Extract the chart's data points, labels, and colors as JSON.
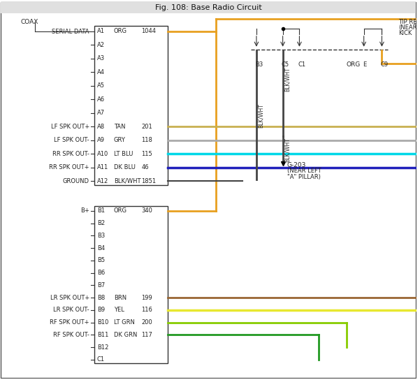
{
  "title": "Fig. 108: Base Radio Circuit",
  "bg_color": "#ffffff",
  "wire_colors": {
    "orange": "#e8a020",
    "tan": "#c8b050",
    "gray": "#aaaaaa",
    "lt_blue": "#00d8e8",
    "dk_blue": "#2020bb",
    "blk_wht": "#444444",
    "lt_green": "#88cc00",
    "dk_green": "#229922",
    "yellow": "#e8e830",
    "brown": "#996633"
  },
  "pin_labels_A": [
    [
      "A1",
      "ORG",
      "1044"
    ],
    [
      "A2",
      "",
      ""
    ],
    [
      "A3",
      "",
      ""
    ],
    [
      "A4",
      "",
      ""
    ],
    [
      "A5",
      "",
      ""
    ],
    [
      "A6",
      "",
      ""
    ],
    [
      "A7",
      "",
      ""
    ],
    [
      "A8",
      "TAN",
      "201"
    ],
    [
      "A9",
      "GRY",
      "118"
    ],
    [
      "A10",
      "LT BLU",
      "115"
    ],
    [
      "A11",
      "DK BLU",
      "46"
    ],
    [
      "A12",
      "BLK/WHT",
      "1851"
    ]
  ],
  "pin_labels_B": [
    [
      "B1",
      "ORG",
      "340"
    ],
    [
      "B2",
      "",
      ""
    ],
    [
      "B3",
      "",
      ""
    ],
    [
      "B4",
      "",
      ""
    ],
    [
      "B5",
      "",
      ""
    ],
    [
      "B6",
      "",
      ""
    ],
    [
      "B7",
      "",
      ""
    ],
    [
      "B8",
      "BRN",
      "199"
    ],
    [
      "B9",
      "YEL",
      "116"
    ],
    [
      "B10",
      "LT GRN",
      "200"
    ],
    [
      "B11",
      "DK GRN",
      "117"
    ],
    [
      "B12",
      "",
      ""
    ],
    [
      "C1",
      "",
      ""
    ]
  ]
}
